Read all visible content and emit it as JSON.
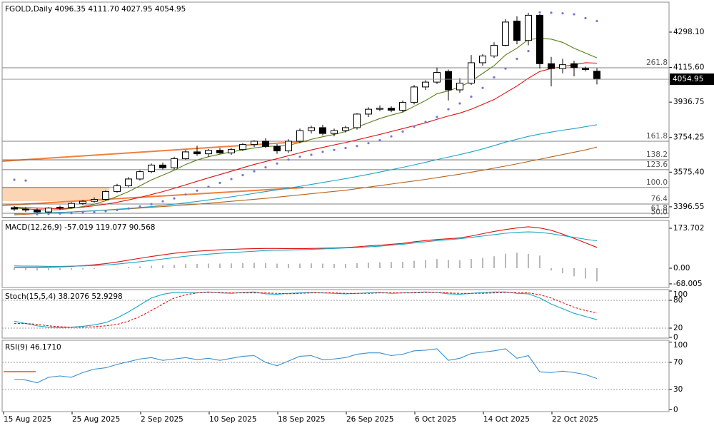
{
  "chart_data": [
    {
      "type": "candlestick",
      "title": "FGOLD,Daily 4096.35 4111.70 4027.95 4054.95",
      "categories": [
        "15 Aug 2025",
        null,
        null,
        null,
        null,
        null,
        "25 Aug 2025",
        null,
        null,
        null,
        null,
        null,
        "2 Sep 2025",
        null,
        null,
        null,
        null,
        null,
        "10 Sep 2025",
        null,
        null,
        null,
        null,
        null,
        "18 Sep 2025",
        null,
        null,
        null,
        null,
        null,
        "26 Sep 2025",
        null,
        null,
        null,
        null,
        null,
        "6 Oct 2025",
        null,
        null,
        null,
        null,
        null,
        "14 Oct 2025",
        null,
        null,
        null,
        null,
        null,
        "22 Oct 2025",
        null,
        null,
        null
      ],
      "open": [
        3392,
        3385,
        3380,
        3370,
        3390,
        3394,
        3414,
        3425,
        3435,
        3475,
        3505,
        3540,
        3578,
        3612,
        3598,
        3645,
        3680,
        3670,
        3688,
        3675,
        3692,
        3718,
        3735,
        3708,
        3685,
        3735,
        3790,
        3805,
        3775,
        3790,
        3805,
        3875,
        3900,
        3905,
        3895,
        3935,
        4015,
        4040,
        4095,
        4000,
        4035,
        4140,
        4175,
        4230,
        4355,
        4255,
        4385,
        4135,
        4110,
        4135,
        4110,
        4096.35
      ],
      "high": [
        3400,
        3395,
        3388,
        3395,
        3402,
        3420,
        3432,
        3445,
        3482,
        3515,
        3550,
        3585,
        3620,
        3625,
        3655,
        3690,
        3712,
        3695,
        3700,
        3700,
        3725,
        3740,
        3750,
        3720,
        3745,
        3800,
        3815,
        3820,
        3800,
        3815,
        3880,
        3910,
        3920,
        3915,
        3945,
        4025,
        4050,
        4115,
        4105,
        4060,
        4180,
        4185,
        4245,
        4365,
        4380,
        4398,
        4390,
        4170,
        4160,
        4150,
        4120,
        4111.7
      ],
      "low": [
        3375,
        3370,
        3360,
        3365,
        3380,
        3388,
        3405,
        3418,
        3430,
        3470,
        3498,
        3532,
        3570,
        3590,
        3590,
        3638,
        3660,
        3655,
        3670,
        3665,
        3685,
        3705,
        3700,
        3670,
        3675,
        3725,
        3775,
        3765,
        3760,
        3780,
        3795,
        3860,
        3890,
        3885,
        3885,
        3925,
        4000,
        4030,
        3945,
        3985,
        4025,
        4125,
        4165,
        4225,
        4235,
        4230,
        4110,
        4018,
        4085,
        4070,
        4095,
        4027.95
      ],
      "close": [
        3385,
        3380,
        3370,
        3390,
        3394,
        3414,
        3425,
        3435,
        3475,
        3505,
        3540,
        3578,
        3612,
        3598,
        3645,
        3680,
        3670,
        3688,
        3675,
        3692,
        3718,
        3735,
        3708,
        3685,
        3735,
        3790,
        3805,
        3775,
        3790,
        3805,
        3875,
        3900,
        3905,
        3895,
        3935,
        4015,
        4040,
        4090,
        4000,
        4035,
        4140,
        4175,
        4230,
        4350,
        4255,
        4385,
        4135,
        4110,
        4130,
        4115,
        4105,
        4054.95
      ],
      "up_color": "#ffffff",
      "down_color": "#000000",
      "series": [
        {
          "color": "#b5651d",
          "style": "line",
          "values": [
            3355,
            3358,
            3361,
            3364,
            3367,
            3370,
            3373,
            3376,
            3379,
            3382,
            3386,
            3390,
            3394,
            3398,
            3402,
            3406,
            3410,
            3415,
            3420,
            3425,
            3430,
            3435,
            3440,
            3446,
            3452,
            3458,
            3464,
            3470,
            3476,
            3482,
            3490,
            3498,
            3506,
            3514,
            3522,
            3530,
            3538,
            3547,
            3556,
            3565,
            3575,
            3585,
            3596,
            3607,
            3618,
            3630,
            3642,
            3654,
            3666,
            3678,
            3690,
            3705
          ]
        },
        {
          "color": "#1aa6c4",
          "style": "line",
          "values": [
            3360,
            3362,
            3364,
            3366,
            3368,
            3370,
            3373,
            3376,
            3380,
            3384,
            3388,
            3393,
            3398,
            3404,
            3410,
            3417,
            3424,
            3432,
            3440,
            3448,
            3457,
            3466,
            3475,
            3484,
            3493,
            3502,
            3512,
            3522,
            3532,
            3542,
            3553,
            3564,
            3576,
            3588,
            3600,
            3613,
            3626,
            3640,
            3653,
            3666,
            3680,
            3695,
            3712,
            3730,
            3745,
            3760,
            3772,
            3782,
            3792,
            3800,
            3810,
            3820
          ]
        },
        {
          "color": "#e01010",
          "style": "line",
          "values": [
            3395,
            3392,
            3390,
            3388,
            3387,
            3390,
            3395,
            3402,
            3410,
            3420,
            3432,
            3445,
            3460,
            3475,
            3492,
            3510,
            3528,
            3546,
            3563,
            3580,
            3598,
            3615,
            3630,
            3645,
            3660,
            3675,
            3690,
            3703,
            3716,
            3728,
            3742,
            3756,
            3770,
            3785,
            3800,
            3815,
            3830,
            3848,
            3865,
            3880,
            3900,
            3925,
            3950,
            3985,
            4020,
            4060,
            4095,
            4110,
            4120,
            4130,
            4140,
            4138
          ]
        },
        {
          "color": "#5a7d1a",
          "style": "line",
          "values": [
            3390,
            3386,
            3382,
            3380,
            3382,
            3388,
            3398,
            3410,
            3428,
            3450,
            3475,
            3505,
            3535,
            3560,
            3585,
            3615,
            3638,
            3655,
            3668,
            3680,
            3690,
            3700,
            3708,
            3710,
            3714,
            3728,
            3745,
            3758,
            3770,
            3785,
            3808,
            3830,
            3852,
            3870,
            3885,
            3915,
            3945,
            3980,
            3995,
            4015,
            4045,
            4085,
            4125,
            4180,
            4215,
            4260,
            4265,
            4262,
            4245,
            4215,
            4190,
            4165
          ]
        },
        {
          "color": "#7b74d6",
          "style": "dots",
          "values": [
            3536,
            3532,
            3358,
            3360,
            3362,
            3364,
            3366,
            3370,
            3374,
            3380,
            3388,
            3398,
            3410,
            3425,
            3440,
            3460,
            3480,
            3500,
            3520,
            3540,
            3560,
            3580,
            3600,
            3620,
            3640,
            3655,
            3665,
            3680,
            3690,
            3700,
            3710,
            3725,
            3740,
            3760,
            3785,
            3810,
            3835,
            3860,
            3900,
            3930,
            3965,
            4010,
            4065,
            4110,
            4160,
            4200,
            4400,
            4398,
            4395,
            4390,
            4370,
            4355
          ]
        }
      ],
      "ylim": [
        3341,
        4452.7
      ],
      "yticks": [
        {
          "value": 4298.1,
          "label": "4298.10"
        },
        {
          "value": 4115.6,
          "label": "4115.60"
        },
        3936.75,
        3754.25,
        {
          "value": 3575.4,
          "label": "3575.40"
        },
        3396.55
      ],
      "levels": [
        {
          "value": 4114,
          "label": "261.8"
        },
        {
          "value": 3735,
          "label": "161.8"
        },
        {
          "value": 3639,
          "label": "138.2"
        },
        {
          "value": 3588,
          "label": "123.6"
        },
        {
          "value": 3496,
          "label": "100.0"
        },
        {
          "value": 3411,
          "label": "76.4"
        },
        {
          "value": 3363,
          "label": "61.8"
        },
        {
          "value": 3343,
          "label": "50.0"
        }
      ]
    },
    {
      "type": "line",
      "title": "MACD(12,26,9) -57.019 119.077 90.568",
      "series": [
        {
          "color": "#a0a0a0",
          "style": "histogram",
          "values": [
            -8,
            -9,
            -10,
            -9,
            -8,
            -7,
            -5,
            -3,
            -1,
            2,
            5,
            8,
            11,
            13,
            15,
            18,
            19,
            20,
            20,
            21,
            22,
            23,
            22,
            20,
            19,
            20,
            21,
            20,
            19,
            19,
            22,
            24,
            26,
            27,
            28,
            32,
            36,
            40,
            36,
            35,
            40,
            45,
            52,
            63,
            68,
            62,
            55,
            -10,
            -22,
            -35,
            -45,
            -57.019
          ]
        },
        {
          "color": "#e01010",
          "style": "line",
          "values": [
            3,
            3,
            4,
            5,
            6,
            8,
            11,
            15,
            20,
            27,
            35,
            43,
            51,
            58,
            65,
            70,
            74,
            77,
            80,
            82,
            84,
            85,
            86,
            86,
            85,
            85,
            86,
            87,
            88,
            90,
            93,
            97,
            100,
            104,
            108,
            115,
            120,
            125,
            128,
            132,
            140,
            150,
            160,
            168,
            175,
            180,
            175,
            165,
            148,
            130,
            110,
            90.568
          ]
        },
        {
          "color": "#1aa6c4",
          "style": "line",
          "values": [
            10,
            9,
            9,
            8,
            8,
            9,
            10,
            12,
            14,
            18,
            23,
            28,
            34,
            40,
            46,
            52,
            57,
            61,
            65,
            68,
            71,
            74,
            77,
            78,
            79,
            80,
            82,
            84,
            86,
            88,
            90,
            93,
            96,
            100,
            104,
            110,
            115,
            120,
            124,
            128,
            134,
            140,
            146,
            152,
            156,
            158,
            156,
            150,
            142,
            134,
            126,
            119.077
          ]
        }
      ],
      "ylim": [
        -83.7,
        195.4
      ],
      "yticks": [
        173.702,
        {
          "value": 0,
          "label": "0.00"
        },
        -68.005
      ],
      "grid": false
    },
    {
      "type": "line",
      "title": "Stoch(15,5,4) 38.2076 52.9298",
      "series": [
        {
          "color": "#1aa6c4",
          "style": "line",
          "values": [
            35,
            30,
            25,
            22,
            21,
            22,
            24,
            27,
            32,
            42,
            55,
            70,
            85,
            93,
            97,
            97,
            96,
            98,
            96,
            95,
            97,
            98,
            94,
            93,
            95,
            96,
            97,
            96,
            95,
            94,
            95,
            96,
            97,
            95,
            96,
            97,
            98,
            97,
            94,
            93,
            95,
            97,
            98,
            98,
            95,
            94,
            85,
            72,
            62,
            52,
            45,
            38.2076
          ]
        },
        {
          "color": "#e01010",
          "style": "dashed",
          "values": [
            30,
            30,
            28,
            25,
            23,
            22,
            22,
            23,
            25,
            28,
            35,
            45,
            58,
            72,
            85,
            92,
            96,
            97,
            97,
            96,
            96,
            96,
            96,
            95,
            94,
            95,
            96,
            96,
            96,
            95,
            95,
            95,
            96,
            96,
            96,
            96,
            97,
            97,
            96,
            95,
            95,
            95,
            96,
            97,
            97,
            96,
            92,
            85,
            75,
            65,
            58,
            52.9298
          ]
        }
      ],
      "ylim": [
        0,
        100
      ],
      "yticks": [
        100,
        80,
        20,
        0
      ],
      "grid": true
    },
    {
      "type": "line",
      "title": "RSI(9) 46.1710",
      "series": [
        {
          "color": "#3a8fd0",
          "style": "line",
          "values": [
            45,
            44,
            40,
            48,
            50,
            48,
            55,
            60,
            62,
            67,
            71,
            75,
            77,
            73,
            75,
            77,
            74,
            76,
            73,
            76,
            79,
            80,
            70,
            65,
            72,
            79,
            80,
            74,
            75,
            77,
            82,
            84,
            84,
            80,
            82,
            87,
            88,
            90,
            73,
            76,
            83,
            85,
            87,
            90,
            76,
            80,
            56,
            55,
            57,
            55,
            52,
            46.171
          ]
        }
      ],
      "ylim": [
        0,
        100
      ],
      "yticks": [
        100,
        70,
        30,
        0
      ],
      "grid": true
    }
  ]
}
